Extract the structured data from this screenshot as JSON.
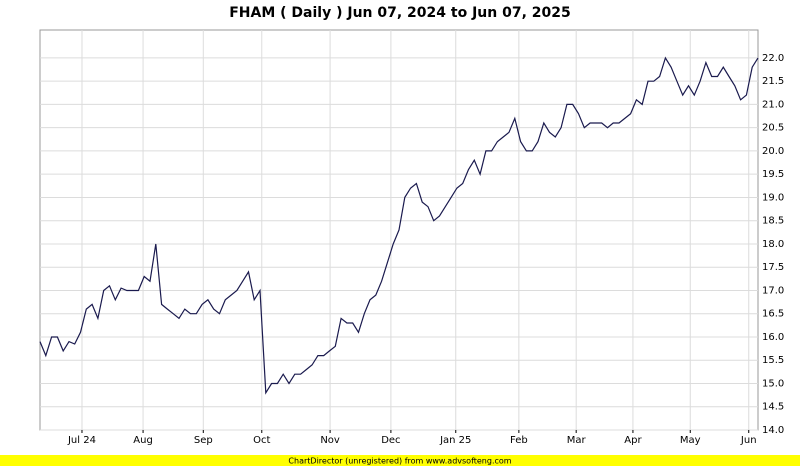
{
  "chart_data": {
    "type": "line",
    "title": "FHAM ( Daily ) Jun 07, 2024 to Jun 07, 2025",
    "footer": "ChartDirector (unregistered) from www.advsofteng.com",
    "color": "#1a1a4e",
    "grid": true,
    "x": [
      0,
      1,
      2,
      3,
      4,
      5,
      6,
      7,
      8,
      9,
      10,
      11,
      12,
      13,
      14,
      15,
      16,
      17,
      18,
      19,
      20,
      21,
      22,
      23,
      24,
      25,
      26,
      27,
      28,
      29,
      30,
      31,
      32,
      33,
      34,
      35,
      36,
      37,
      38,
      39,
      40,
      41,
      42,
      43,
      44,
      45,
      46,
      47,
      48,
      49,
      50,
      51,
      52,
      53,
      54,
      55,
      56,
      57,
      58,
      59,
      60,
      61,
      62,
      63,
      64,
      65,
      66,
      67,
      68,
      69,
      70,
      71,
      72,
      73,
      74,
      75,
      76,
      77,
      78,
      79,
      80,
      81,
      82,
      83,
      84,
      85,
      86,
      87,
      88,
      89,
      90,
      91,
      92,
      93,
      94,
      95,
      96,
      97,
      98,
      99,
      100,
      101,
      102,
      103,
      104,
      105,
      106,
      107,
      108,
      109,
      110,
      111,
      112,
      113,
      114,
      115,
      116,
      117,
      118,
      119,
      120,
      121,
      122,
      123,
      124
    ],
    "values": [
      15.9,
      15.6,
      16.0,
      16.0,
      15.7,
      15.9,
      15.85,
      16.1,
      16.6,
      16.7,
      16.4,
      17.0,
      17.1,
      16.8,
      17.05,
      17.0,
      17.0,
      17.0,
      17.3,
      17.2,
      18.0,
      16.7,
      16.6,
      16.5,
      16.4,
      16.6,
      16.5,
      16.5,
      16.7,
      16.8,
      16.6,
      16.5,
      16.8,
      16.9,
      17.0,
      17.2,
      17.4,
      16.8,
      17.0,
      14.8,
      15.0,
      15.0,
      15.2,
      15.0,
      15.2,
      15.2,
      15.3,
      15.4,
      15.6,
      15.6,
      15.7,
      15.8,
      16.4,
      16.3,
      16.3,
      16.1,
      16.5,
      16.8,
      16.9,
      17.2,
      17.6,
      18.0,
      18.3,
      19.0,
      19.2,
      19.3,
      18.9,
      18.8,
      18.5,
      18.6,
      18.8,
      19.0,
      19.2,
      19.3,
      19.6,
      19.8,
      19.5,
      20.0,
      20.0,
      20.2,
      20.3,
      20.4,
      20.7,
      20.2,
      20.0,
      20.0,
      20.2,
      20.6,
      20.4,
      20.3,
      20.5,
      21.0,
      21.0,
      20.8,
      20.5,
      20.6,
      20.6,
      20.6,
      20.5,
      20.6,
      20.6,
      20.7,
      20.8,
      21.1,
      21.0,
      21.5,
      21.5,
      21.6,
      22.0,
      21.8,
      21.5,
      21.2,
      21.4,
      21.2,
      21.5,
      21.9,
      21.6,
      21.6,
      21.8,
      21.6,
      21.4,
      21.1,
      21.2,
      21.8,
      22.0
    ],
    "xlim": [
      0,
      124
    ],
    "xticks": [
      {
        "value": 7.25,
        "label": "Jul 24"
      },
      {
        "value": 17.8,
        "label": "Aug"
      },
      {
        "value": 28.2,
        "label": "Sep"
      },
      {
        "value": 38.3,
        "label": "Oct"
      },
      {
        "value": 50.1,
        "label": "Nov"
      },
      {
        "value": 60.6,
        "label": "Dec"
      },
      {
        "value": 71.8,
        "label": "Jan 25"
      },
      {
        "value": 82.7,
        "label": "Feb"
      },
      {
        "value": 92.6,
        "label": "Mar"
      },
      {
        "value": 102.4,
        "label": "Apr"
      },
      {
        "value": 112.3,
        "label": "May"
      },
      {
        "value": 122.4,
        "label": "Jun"
      }
    ],
    "ylim": [
      14,
      22.6
    ],
    "yticks": [
      {
        "value": 14,
        "label": "14.0"
      },
      14.5,
      {
        "value": 15,
        "label": "15.0"
      },
      15.5,
      {
        "value": 16,
        "label": "16.0"
      },
      16.5,
      {
        "value": 17,
        "label": "17.0"
      },
      17.5,
      {
        "value": 18,
        "label": "18.0"
      },
      18.5,
      {
        "value": 19,
        "label": "19.0"
      },
      19.5,
      {
        "value": 20,
        "label": "20.0"
      },
      20.5,
      {
        "value": 21,
        "label": "21.0"
      },
      21.5,
      {
        "value": 22,
        "label": "22.0"
      }
    ]
  }
}
